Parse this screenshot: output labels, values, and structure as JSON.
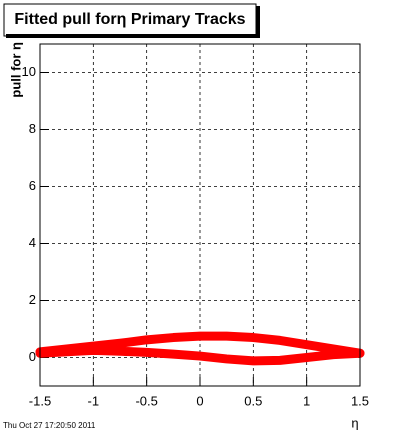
{
  "chart_data": {
    "type": "line",
    "title": "Fitted pull forη  Primary Tracks",
    "y_label": "pull for  η",
    "x_label": "η",
    "timestamp": "Thu Oct 27 17:20:50 2011",
    "x": [
      -1.5,
      -1.25,
      -1,
      -0.75,
      -0.5,
      -0.25,
      0,
      0.25,
      0.5,
      0.75,
      1,
      1.25,
      1.5
    ],
    "series": [
      {
        "color": "#ff0000",
        "values": [
          0.2,
          0.3,
          0.4,
          0.5,
          0.62,
          0.7,
          0.75,
          0.75,
          0.7,
          0.6,
          0.45,
          0.3,
          0.15
        ]
      },
      {
        "color": "#ff0000",
        "values": [
          0.15,
          0.2,
          0.25,
          0.22,
          0.18,
          0.12,
          0.05,
          -0.05,
          -0.12,
          -0.1,
          0,
          0.1,
          0.15
        ]
      }
    ],
    "xlim": [
      -1.5,
      1.5
    ],
    "ylim": [
      -1,
      11
    ],
    "xticks": [
      -1.5,
      -1,
      -0.5,
      0,
      0.5,
      1,
      1.5
    ],
    "yticks": [
      0,
      2,
      4,
      6,
      8,
      10
    ],
    "grid": true
  }
}
